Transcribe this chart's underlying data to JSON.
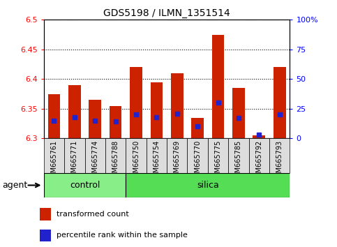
{
  "title": "GDS5198 / ILMN_1351514",
  "samples": [
    "GSM665761",
    "GSM665771",
    "GSM665774",
    "GSM665788",
    "GSM665750",
    "GSM665754",
    "GSM665769",
    "GSM665770",
    "GSM665775",
    "GSM665785",
    "GSM665792",
    "GSM665793"
  ],
  "groups": [
    "control",
    "control",
    "control",
    "control",
    "silica",
    "silica",
    "silica",
    "silica",
    "silica",
    "silica",
    "silica",
    "silica"
  ],
  "transformed_count": [
    6.375,
    6.39,
    6.365,
    6.355,
    6.42,
    6.395,
    6.41,
    6.335,
    6.475,
    6.385,
    6.305,
    6.42
  ],
  "percentile_rank": [
    15,
    18,
    15,
    14,
    20,
    18,
    21,
    10,
    30,
    17,
    3,
    20
  ],
  "ylim_left": [
    6.3,
    6.5
  ],
  "ylim_right": [
    0,
    100
  ],
  "yticks_left": [
    6.3,
    6.35,
    6.4,
    6.45,
    6.5
  ],
  "yticks_right": [
    0,
    25,
    50,
    75,
    100
  ],
  "ytick_labels_right": [
    "0",
    "25",
    "50",
    "75",
    "100%"
  ],
  "bar_color": "#cc2200",
  "marker_color": "#2222cc",
  "background_color": "#dddddd",
  "control_color": "#88ee88",
  "silica_color": "#55dd55",
  "agent_label": "agent",
  "legend_item1": "transformed count",
  "legend_item2": "percentile rank within the sample",
  "bar_bottom": 6.3,
  "bar_width": 0.6,
  "n_control": 4
}
